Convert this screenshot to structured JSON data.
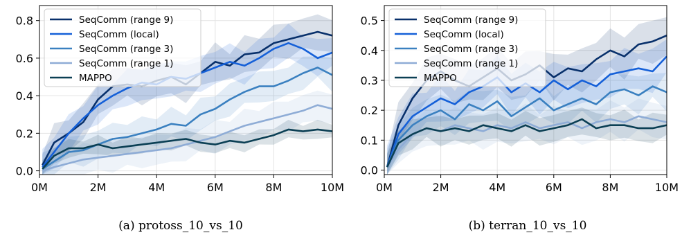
{
  "chart_data": [
    {
      "type": "line",
      "caption": "(a) protoss_10_vs_10",
      "xlabel": "",
      "ylabel": "",
      "xlim": [
        0,
        10
      ],
      "ylim": [
        -0.02,
        0.88
      ],
      "x_ticks": [
        0,
        2,
        4,
        6,
        8,
        10
      ],
      "x_tick_labels": [
        "0M",
        "2M",
        "4M",
        "6M",
        "8M",
        "10M"
      ],
      "y_ticks": [
        0.0,
        0.2,
        0.4,
        0.6,
        0.8
      ],
      "y_tick_labels": [
        "0.0",
        "0.2",
        "0.4",
        "0.6",
        "0.8"
      ],
      "grid": true,
      "legend_position": "upper-left",
      "x": [
        0.1,
        0.5,
        1,
        1.5,
        2,
        2.5,
        3,
        3.5,
        4,
        4.5,
        5,
        5.5,
        6,
        6.5,
        7,
        7.5,
        8,
        8.5,
        9,
        9.5,
        10
      ],
      "series": [
        {
          "name": "SeqComm (range 9)",
          "color": "#08306b",
          "band": 0.08,
          "values": [
            0.03,
            0.15,
            0.2,
            0.26,
            0.38,
            0.45,
            0.46,
            0.45,
            0.48,
            0.5,
            0.46,
            0.52,
            0.58,
            0.56,
            0.62,
            0.63,
            0.68,
            0.7,
            0.72,
            0.74,
            0.72
          ]
        },
        {
          "name": "SeqComm (local)",
          "color": "#1560d8",
          "band": 0.08,
          "values": [
            0.02,
            0.1,
            0.2,
            0.28,
            0.35,
            0.4,
            0.44,
            0.47,
            0.46,
            0.5,
            0.49,
            0.52,
            0.55,
            0.58,
            0.56,
            0.6,
            0.65,
            0.68,
            0.65,
            0.6,
            0.63
          ]
        },
        {
          "name": "SeqComm (range 3)",
          "color": "#3a80c0",
          "band": 0.07,
          "values": [
            0.01,
            0.05,
            0.1,
            0.11,
            0.14,
            0.17,
            0.18,
            0.2,
            0.22,
            0.25,
            0.24,
            0.3,
            0.33,
            0.38,
            0.42,
            0.45,
            0.45,
            0.48,
            0.52,
            0.55,
            0.51
          ]
        },
        {
          "name": "SeqComm (range 1)",
          "color": "#8eacd6",
          "band": 0.07,
          "values": [
            0.0,
            0.02,
            0.04,
            0.06,
            0.07,
            0.08,
            0.09,
            0.1,
            0.11,
            0.12,
            0.14,
            0.16,
            0.18,
            0.21,
            0.24,
            0.26,
            0.28,
            0.3,
            0.32,
            0.35,
            0.33
          ]
        },
        {
          "name": "MAPPO",
          "color": "#0b3f54",
          "band": 0.04,
          "values": [
            0.01,
            0.08,
            0.12,
            0.12,
            0.14,
            0.12,
            0.13,
            0.14,
            0.15,
            0.16,
            0.17,
            0.15,
            0.14,
            0.16,
            0.15,
            0.17,
            0.19,
            0.22,
            0.21,
            0.22,
            0.21
          ]
        }
      ]
    },
    {
      "type": "line",
      "caption": "(b) terran_10_vs_10",
      "xlabel": "",
      "ylabel": "",
      "xlim": [
        0,
        10
      ],
      "ylim": [
        -0.015,
        0.55
      ],
      "x_ticks": [
        0,
        2,
        4,
        6,
        8,
        10
      ],
      "x_tick_labels": [
        "0M",
        "2M",
        "4M",
        "6M",
        "8M",
        "10M"
      ],
      "y_ticks": [
        0.0,
        0.1,
        0.2,
        0.3,
        0.4,
        0.5
      ],
      "y_tick_labels": [
        "0.0",
        "0.1",
        "0.2",
        "0.3",
        "0.4",
        "0.5"
      ],
      "grid": true,
      "legend_position": "upper-left",
      "x": [
        0.1,
        0.5,
        1,
        1.5,
        2,
        2.5,
        3,
        3.5,
        4,
        4.5,
        5,
        5.5,
        6,
        6.5,
        7,
        7.5,
        8,
        8.5,
        9,
        9.5,
        10
      ],
      "series": [
        {
          "name": "SeqComm (range 9)",
          "color": "#08306b",
          "band": 0.06,
          "values": [
            0.01,
            0.15,
            0.24,
            0.3,
            0.33,
            0.3,
            0.28,
            0.31,
            0.34,
            0.3,
            0.32,
            0.35,
            0.31,
            0.34,
            0.33,
            0.37,
            0.4,
            0.38,
            0.42,
            0.43,
            0.45
          ]
        },
        {
          "name": "SeqComm (local)",
          "color": "#1560d8",
          "band": 0.06,
          "values": [
            0.01,
            0.12,
            0.18,
            0.21,
            0.24,
            0.22,
            0.26,
            0.28,
            0.31,
            0.26,
            0.29,
            0.26,
            0.3,
            0.27,
            0.3,
            0.28,
            0.32,
            0.33,
            0.34,
            0.33,
            0.38
          ]
        },
        {
          "name": "SeqComm (range 3)",
          "color": "#3a80c0",
          "band": 0.05,
          "values": [
            0.01,
            0.1,
            0.15,
            0.18,
            0.2,
            0.17,
            0.22,
            0.2,
            0.23,
            0.18,
            0.21,
            0.24,
            0.2,
            0.22,
            0.24,
            0.22,
            0.26,
            0.27,
            0.25,
            0.28,
            0.26
          ]
        },
        {
          "name": "SeqComm (range 1)",
          "color": "#8eacd6",
          "band": 0.05,
          "values": [
            0.01,
            0.07,
            0.12,
            0.14,
            0.13,
            0.15,
            0.14,
            0.13,
            0.15,
            0.14,
            0.16,
            0.14,
            0.15,
            0.16,
            0.14,
            0.16,
            0.17,
            0.16,
            0.18,
            0.17,
            0.16
          ]
        },
        {
          "name": "MAPPO",
          "color": "#0b3f54",
          "band": 0.04,
          "values": [
            0.01,
            0.09,
            0.12,
            0.14,
            0.13,
            0.14,
            0.13,
            0.15,
            0.14,
            0.13,
            0.15,
            0.13,
            0.14,
            0.15,
            0.17,
            0.14,
            0.15,
            0.15,
            0.14,
            0.14,
            0.15
          ]
        }
      ]
    }
  ]
}
